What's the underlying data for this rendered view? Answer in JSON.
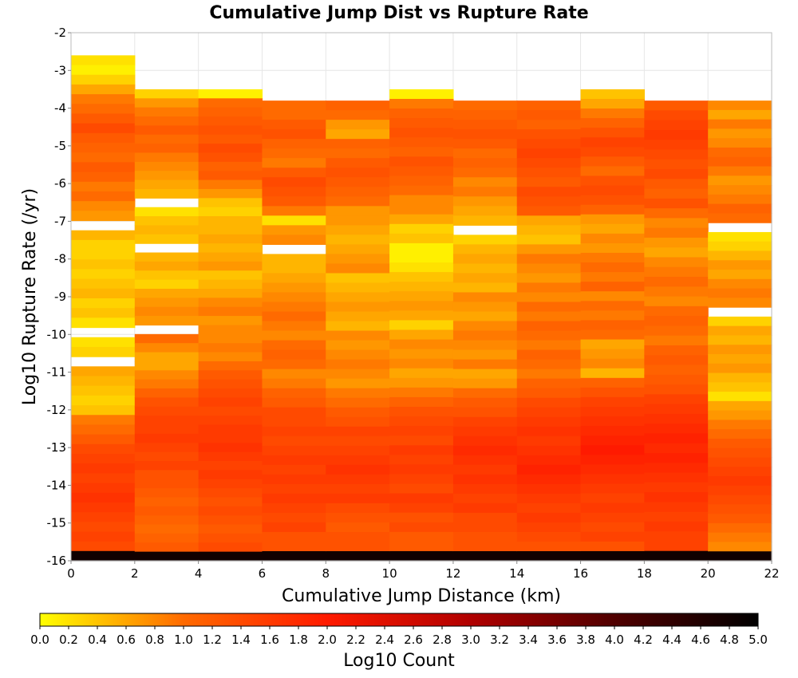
{
  "chart_data": {
    "type": "heatmap",
    "title": "Cumulative Jump Dist vs Rupture Rate",
    "xlabel": "Cumulative Jump Distance (km)",
    "ylabel": "Log10 Rupture Rate (/yr)",
    "xlim": [
      0,
      22
    ],
    "ylim": [
      -16,
      -2
    ],
    "xticks": [
      "0",
      "2",
      "4",
      "6",
      "8",
      "10",
      "12",
      "14",
      "16",
      "18",
      "20",
      "22"
    ],
    "yticks": [
      "-2",
      "-3",
      "-4",
      "-5",
      "-6",
      "-7",
      "-8",
      "-9",
      "-10",
      "-11",
      "-12",
      "-13",
      "-14",
      "-15",
      "-16"
    ],
    "x_bin_width_km": 2,
    "y_bin_height_log10": 0.3,
    "colorbar": {
      "label": "Log10 Count",
      "range": [
        0,
        5
      ],
      "ticks": [
        "0.0",
        "0.2",
        "0.4",
        "0.6",
        "0.8",
        "1.0",
        "1.2",
        "1.4",
        "1.6",
        "1.8",
        "2.0",
        "2.2",
        "2.4",
        "2.6",
        "2.8",
        "3.0",
        "3.2",
        "3.4",
        "3.6",
        "3.8",
        "4.0",
        "4.2",
        "4.4",
        "4.6",
        "4.8",
        "5.0"
      ],
      "colors": [
        "#ffff00",
        "#ff6a00",
        "#ff1a00",
        "#b00000",
        "#500000",
        "#000000"
      ]
    },
    "x_bins": [
      0,
      2,
      4,
      6,
      8,
      10,
      12,
      14,
      16,
      18,
      20
    ],
    "columns": [
      {
        "x0": 0,
        "y_top": -2.6,
        "values": [
          0.2,
          0.1,
          0.3,
          0.6,
          0.9,
          1.0,
          1.2,
          1.4,
          1.2,
          1.1,
          1.0,
          1.2,
          1.1,
          0.9,
          1.0,
          0.8,
          0.7,
          null,
          0.5,
          0.3,
          0.3,
          0.4,
          0.3,
          0.4,
          0.5,
          0.3,
          0.4,
          0.2,
          null,
          0.2,
          0.3,
          null,
          0.6,
          0.5,
          0.4,
          0.3,
          0.4,
          0.9,
          1.0,
          1.2,
          1.4,
          1.5,
          1.6,
          1.5,
          1.6,
          1.7,
          1.6,
          1.5,
          1.4,
          1.5,
          1.4,
          4.8
        ]
      },
      {
        "x0": 2,
        "y_top": -3.5,
        "values": [
          0.3,
          0.7,
          0.9,
          1.0,
          1.2,
          1.0,
          1.1,
          0.9,
          0.8,
          0.7,
          0.6,
          0.5,
          null,
          0.2,
          0.4,
          0.5,
          0.4,
          null,
          0.5,
          0.6,
          0.4,
          0.3,
          0.6,
          0.7,
          0.8,
          0.7,
          null,
          1.0,
          0.8,
          0.6,
          0.6,
          0.8,
          0.9,
          1.1,
          1.3,
          1.4,
          1.5,
          1.5,
          1.6,
          1.5,
          1.4,
          1.5,
          1.3,
          1.3,
          1.2,
          1.1,
          1.2,
          1.1,
          1.0,
          1.1,
          1.2,
          4.8
        ]
      },
      {
        "x0": 4,
        "y_top": -3.5,
        "values": [
          0.1,
          1.0,
          1.1,
          1.2,
          1.3,
          1.2,
          1.4,
          1.3,
          1.1,
          1.2,
          0.9,
          0.7,
          0.4,
          0.3,
          0.5,
          0.5,
          0.6,
          0.5,
          0.6,
          0.7,
          0.4,
          0.5,
          0.6,
          0.8,
          0.9,
          0.7,
          0.8,
          0.8,
          0.9,
          0.8,
          1.0,
          1.2,
          1.3,
          1.4,
          1.5,
          1.4,
          1.5,
          1.6,
          1.6,
          1.7,
          1.6,
          1.5,
          1.6,
          1.5,
          1.4,
          1.3,
          1.4,
          1.3,
          1.2,
          1.3,
          1.4,
          4.8
        ]
      },
      {
        "x0": 6,
        "y_top": -3.8,
        "values": [
          1.0,
          1.0,
          1.2,
          1.3,
          1.1,
          1.0,
          0.9,
          1.2,
          1.4,
          1.3,
          1.2,
          0.9,
          0.2,
          0.7,
          0.8,
          null,
          0.5,
          0.5,
          0.6,
          0.7,
          0.8,
          0.9,
          1.0,
          0.9,
          0.8,
          1.0,
          1.1,
          1.0,
          0.8,
          0.9,
          1.1,
          1.2,
          1.4,
          1.4,
          1.5,
          1.4,
          1.5,
          1.6,
          1.5,
          1.6,
          1.5,
          1.6,
          1.5,
          1.4,
          1.5,
          1.3,
          1.3,
          4.8
        ]
      },
      {
        "x0": 8,
        "y_top": -3.8,
        "values": [
          1.1,
          1.0,
          0.7,
          0.6,
          1.1,
          1.0,
          1.2,
          1.3,
          1.2,
          1.1,
          1.0,
          0.7,
          0.7,
          0.6,
          0.5,
          0.6,
          0.7,
          0.8,
          0.4,
          0.5,
          0.6,
          0.7,
          0.6,
          0.5,
          0.8,
          0.7,
          0.8,
          0.9,
          0.8,
          0.7,
          0.9,
          1.0,
          1.2,
          1.3,
          1.5,
          1.4,
          1.5,
          1.6,
          1.7,
          1.6,
          1.5,
          1.6,
          1.4,
          1.3,
          1.2,
          1.3,
          1.3,
          4.8
        ]
      },
      {
        "x0": 10,
        "y_top": -3.5,
        "values": [
          0.1,
          0.9,
          1.1,
          1.2,
          1.3,
          1.2,
          1.1,
          1.3,
          1.2,
          1.1,
          1.0,
          0.8,
          0.8,
          0.6,
          0.3,
          0.4,
          0.1,
          0.1,
          0.2,
          0.4,
          0.5,
          0.6,
          0.7,
          0.6,
          0.3,
          0.6,
          0.8,
          0.7,
          0.8,
          0.6,
          0.7,
          0.9,
          1.1,
          1.3,
          1.4,
          1.5,
          1.4,
          1.6,
          1.5,
          1.6,
          1.5,
          1.4,
          1.6,
          1.5,
          1.3,
          1.4,
          1.2,
          1.2,
          4.8
        ]
      },
      {
        "x0": 12,
        "y_top": -3.8,
        "values": [
          1.0,
          1.1,
          1.2,
          1.3,
          1.2,
          1.0,
          1.1,
          1.0,
          0.8,
          0.9,
          0.7,
          0.6,
          0.5,
          null,
          0.3,
          0.5,
          0.6,
          0.5,
          0.6,
          0.5,
          0.8,
          0.7,
          0.6,
          0.8,
          0.9,
          0.8,
          0.7,
          0.9,
          0.6,
          0.7,
          1.0,
          1.2,
          1.3,
          1.5,
          1.6,
          1.7,
          1.8,
          1.7,
          1.6,
          1.7,
          1.6,
          1.5,
          1.6,
          1.4,
          1.4,
          1.3,
          1.3,
          4.8
        ]
      },
      {
        "x0": 14,
        "y_top": -3.8,
        "values": [
          1.1,
          1.2,
          1.1,
          1.3,
          1.4,
          1.5,
          1.4,
          1.3,
          1.2,
          1.4,
          1.3,
          1.2,
          0.6,
          0.5,
          0.4,
          0.7,
          0.9,
          0.8,
          0.7,
          0.9,
          0.8,
          1.0,
          0.9,
          1.1,
          1.0,
          0.9,
          1.1,
          1.0,
          0.9,
          1.1,
          1.2,
          1.4,
          1.5,
          1.6,
          1.7,
          1.6,
          1.7,
          1.8,
          1.9,
          1.8,
          1.7,
          1.6,
          1.5,
          1.6,
          1.5,
          1.4,
          1.3,
          4.8
        ]
      },
      {
        "x0": 16,
        "y_top": -3.5,
        "values": [
          0.4,
          0.6,
          0.9,
          1.1,
          1.3,
          1.5,
          1.4,
          1.2,
          1.0,
          1.3,
          1.4,
          1.3,
          1.1,
          0.7,
          0.6,
          0.8,
          0.7,
          0.9,
          1.0,
          0.9,
          1.1,
          0.8,
          1.0,
          0.9,
          1.1,
          1.0,
          0.6,
          0.7,
          0.8,
          0.5,
          1.1,
          1.3,
          1.5,
          1.6,
          1.7,
          1.8,
          1.9,
          2.0,
          1.9,
          1.8,
          1.7,
          1.6,
          1.5,
          1.6,
          1.5,
          1.4,
          1.5,
          1.3,
          4.8
        ]
      },
      {
        "x0": 18,
        "y_top": -3.8,
        "values": [
          1.2,
          1.4,
          1.5,
          1.6,
          1.5,
          1.4,
          1.3,
          1.4,
          1.2,
          1.1,
          1.3,
          1.0,
          0.8,
          0.9,
          0.7,
          0.6,
          0.8,
          0.9,
          1.0,
          0.9,
          0.8,
          1.0,
          1.1,
          1.0,
          0.9,
          1.1,
          1.2,
          1.1,
          1.2,
          1.3,
          1.5,
          1.6,
          1.7,
          1.8,
          1.9,
          1.8,
          1.9,
          1.8,
          1.7,
          1.6,
          1.7,
          1.6,
          1.5,
          1.6,
          1.5,
          1.5,
          4.8
        ]
      },
      {
        "x0": 20,
        "y_top": -3.8,
        "values": [
          0.8,
          0.6,
          0.9,
          0.7,
          0.8,
          1.0,
          1.1,
          0.9,
          0.7,
          0.8,
          0.9,
          1.1,
          1.0,
          null,
          0.2,
          0.3,
          0.5,
          0.7,
          0.6,
          0.8,
          0.9,
          0.8,
          null,
          0.3,
          0.6,
          0.5,
          0.7,
          0.6,
          0.7,
          0.5,
          0.4,
          0.2,
          0.6,
          0.7,
          0.9,
          1.0,
          1.2,
          1.3,
          1.4,
          1.5,
          1.6,
          1.5,
          1.4,
          1.3,
          1.2,
          1.0,
          0.9,
          0.8,
          4.8
        ]
      }
    ]
  }
}
